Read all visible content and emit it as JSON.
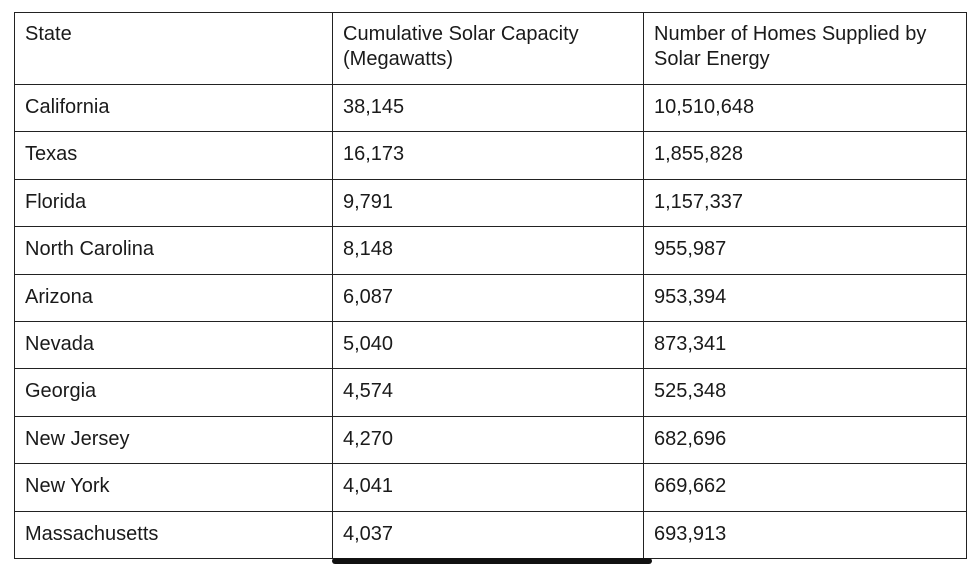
{
  "table": {
    "headers": [
      "State",
      "Cumulative Solar Capacity (Megawatts)",
      "Number of Homes Supplied by Solar Energy"
    ],
    "rows": [
      [
        "California",
        "38,145",
        "10,510,648"
      ],
      [
        "Texas",
        "16,173",
        "1,855,828"
      ],
      [
        "Florida",
        "9,791",
        "1,157,337"
      ],
      [
        "North Carolina",
        "8,148",
        "955,987"
      ],
      [
        "Arizona",
        "6,087",
        "953,394"
      ],
      [
        "Nevada",
        "5,040",
        "873,341"
      ],
      [
        "Georgia",
        "4,574",
        "525,348"
      ],
      [
        "New Jersey",
        "4,270",
        "682,696"
      ],
      [
        "New York",
        "4,041",
        "669,662"
      ],
      [
        "Massachusetts",
        "4,037",
        "693,913"
      ]
    ]
  }
}
